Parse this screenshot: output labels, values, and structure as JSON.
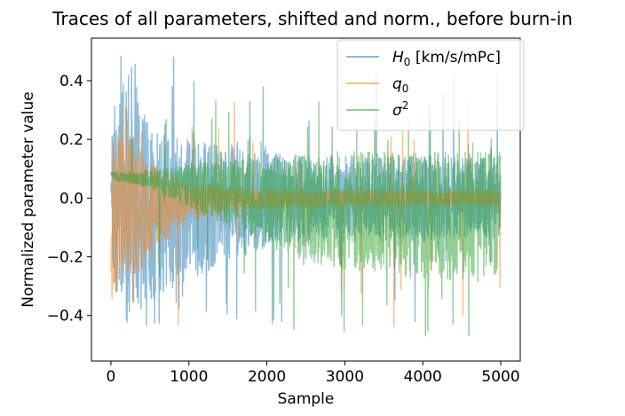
{
  "chart_data": {
    "type": "line",
    "title": "Traces of all parameters, shifted and norm., before burn-in",
    "xlabel": "Sample",
    "ylabel": "Normalized parameter value",
    "xlim": [
      -250,
      5250
    ],
    "ylim": [
      -0.555,
      0.545
    ],
    "x_ticks": [
      0,
      1000,
      2000,
      3000,
      4000,
      5000
    ],
    "x_tick_labels": [
      "0",
      "1000",
      "2000",
      "3000",
      "4000",
      "5000"
    ],
    "y_ticks": [
      -0.4,
      -0.2,
      0.0,
      0.2,
      0.4
    ],
    "y_tick_labels": [
      "−0.4",
      "−0.2",
      "0.0",
      "0.2",
      "0.4"
    ],
    "grid": false,
    "legend_position": "top-right",
    "n_samples": 5000,
    "series": [
      {
        "name": "H₀ [km/s/mPc]",
        "label_main": "H",
        "label_sub": "0",
        "label_rest": " [km/s/mPc]",
        "color": "#1f77b4",
        "envelope_x": [
          0,
          250,
          500,
          1000,
          1500,
          2000,
          2500,
          3000,
          3500,
          4000,
          4500,
          5000
        ],
        "envelope_upper": [
          0.3,
          0.45,
          0.25,
          0.2,
          0.18,
          0.16,
          0.15,
          0.15,
          0.15,
          0.15,
          0.14,
          0.14
        ],
        "envelope_lower": [
          -0.3,
          -0.45,
          -0.35,
          -0.28,
          -0.22,
          -0.17,
          -0.15,
          -0.15,
          -0.15,
          -0.15,
          -0.14,
          -0.14
        ],
        "max": 0.5,
        "min": -0.44
      },
      {
        "name": "q₀",
        "label_main": "q",
        "label_sub": "0",
        "label_rest": "",
        "color": "#ff7f0e",
        "envelope_x": [
          0,
          250,
          500,
          1000,
          1500,
          2000,
          2500,
          3000,
          3500,
          4000,
          4500,
          5000
        ],
        "envelope_upper": [
          0.3,
          0.22,
          0.12,
          0.06,
          0.04,
          0.035,
          0.03,
          0.03,
          0.03,
          0.03,
          0.03,
          0.03
        ],
        "envelope_lower": [
          -0.35,
          -0.3,
          -0.2,
          -0.08,
          -0.05,
          -0.04,
          -0.035,
          -0.03,
          -0.03,
          -0.03,
          -0.03,
          -0.03
        ],
        "max": 0.36,
        "min": -0.5
      },
      {
        "name": "σ²",
        "label_main": "σ",
        "label_sub": "",
        "label_sup": "2",
        "label_rest": "",
        "color": "#2ca02c",
        "envelope_x": [
          0,
          250,
          500,
          1000,
          1500,
          2000,
          2500,
          3000,
          3500,
          4000,
          4500,
          5000
        ],
        "envelope_upper": [
          0.09,
          0.09,
          0.1,
          0.12,
          0.13,
          0.14,
          0.15,
          0.16,
          0.16,
          0.16,
          0.16,
          0.16
        ],
        "envelope_lower": [
          0.06,
          0.05,
          0.03,
          -0.03,
          -0.1,
          -0.15,
          -0.22,
          -0.25,
          -0.26,
          -0.28,
          -0.28,
          -0.27
        ],
        "max": 0.34,
        "min": -0.49
      }
    ]
  }
}
